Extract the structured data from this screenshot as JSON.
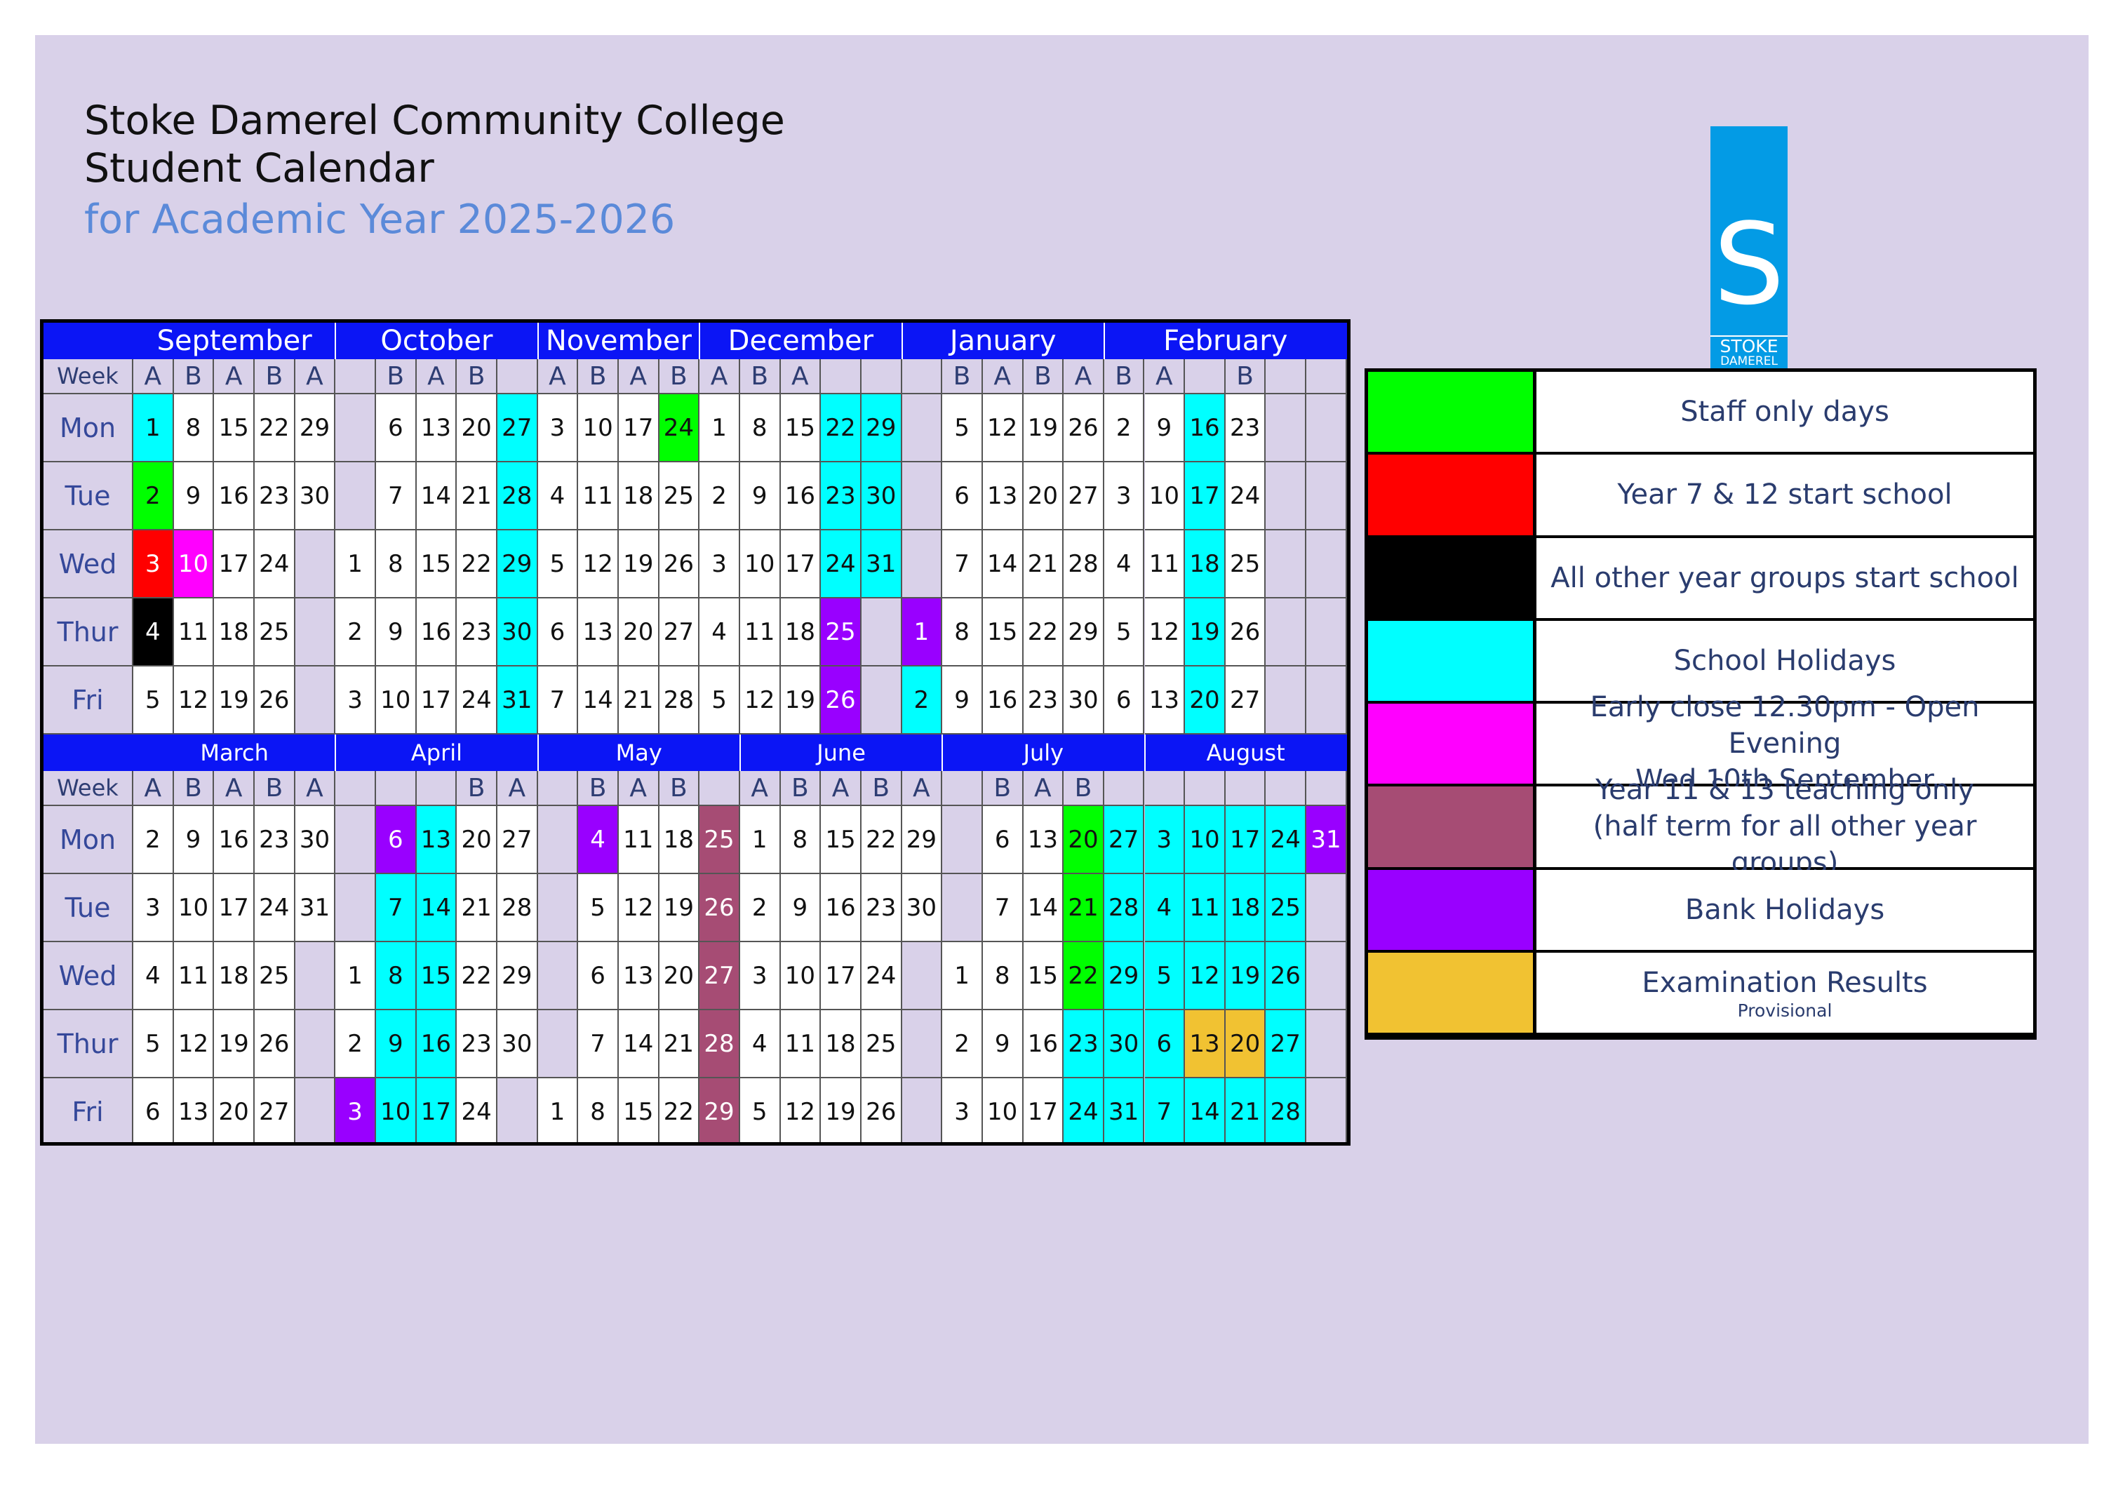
{
  "header": {
    "line1": "Stoke Damerel Community College",
    "line2": "Student Calendar",
    "line3": "for Academic Year 2025-2026"
  },
  "logo": {
    "glyph": "S",
    "line1": "STOKE",
    "line2": "DAMEREL"
  },
  "colors": {
    "staff": "#00ff00",
    "y712": "#ff0000",
    "other": "#000000",
    "hol": "#00ffff",
    "early": "#ff00ff",
    "y1113": "#a64c74",
    "bank": "#9900ff",
    "exam": "#f1c232",
    "header_bar": "#0b15f5",
    "page": "#d9d1e9"
  },
  "calendar": {
    "week_label": "Week",
    "row_labels": [
      "Mon",
      "Tue",
      "Wed",
      "Thur",
      "Fri"
    ],
    "blocks": [
      {
        "months": [
          {
            "name": "September",
            "cols": 5
          },
          {
            "name": "October",
            "cols": 5
          },
          {
            "name": "November",
            "cols": 4
          },
          {
            "name": "December",
            "cols": 5
          },
          {
            "name": "January",
            "cols": 5
          },
          {
            "name": "February",
            "cols": 6
          }
        ],
        "weeks": [
          "A",
          "B",
          "A",
          "B",
          "A",
          "",
          "B",
          "A",
          "B",
          "",
          "A",
          "B",
          "A",
          "B",
          "A",
          "B",
          "A",
          "",
          "",
          "",
          "B",
          "A",
          "B",
          "A",
          "B",
          "A",
          "",
          "B",
          "",
          ""
        ],
        "days": [
          [
            "1",
            "8",
            "15",
            "22",
            "29",
            "",
            "6",
            "13",
            "20",
            "27",
            "3",
            "10",
            "17",
            "24",
            "1",
            "8",
            "15",
            "22",
            "29",
            "",
            "5",
            "12",
            "19",
            "26",
            "2",
            "9",
            "16",
            "23",
            "",
            ""
          ],
          [
            "2",
            "9",
            "16",
            "23",
            "30",
            "",
            "7",
            "14",
            "21",
            "28",
            "4",
            "11",
            "18",
            "25",
            "2",
            "9",
            "16",
            "23",
            "30",
            "",
            "6",
            "13",
            "20",
            "27",
            "3",
            "10",
            "17",
            "24",
            "",
            ""
          ],
          [
            "3",
            "10",
            "17",
            "24",
            "",
            "1",
            "8",
            "15",
            "22",
            "29",
            "5",
            "12",
            "19",
            "26",
            "3",
            "10",
            "17",
            "24",
            "31",
            "",
            "7",
            "14",
            "21",
            "28",
            "4",
            "11",
            "18",
            "25",
            "",
            ""
          ],
          [
            "4",
            "11",
            "18",
            "25",
            "",
            "2",
            "9",
            "16",
            "23",
            "30",
            "6",
            "13",
            "20",
            "27",
            "4",
            "11",
            "18",
            "25",
            "",
            "1",
            "8",
            "15",
            "22",
            "29",
            "5",
            "12",
            "19",
            "26",
            "",
            ""
          ],
          [
            "5",
            "12",
            "19",
            "26",
            "",
            "3",
            "10",
            "17",
            "24",
            "31",
            "7",
            "14",
            "21",
            "28",
            "5",
            "12",
            "19",
            "26",
            "",
            "2",
            "9",
            "16",
            "23",
            "30",
            "6",
            "13",
            "20",
            "27",
            "",
            ""
          ]
        ],
        "colors": [
          [
            "hol",
            "",
            "",
            "",
            "",
            "",
            "",
            "",
            "",
            "hol",
            "",
            "",
            "",
            "staff",
            "",
            "",
            "",
            "hol",
            "hol",
            "",
            "",
            "",
            "",
            "",
            "",
            "",
            "hol",
            "",
            "",
            ""
          ],
          [
            "staff",
            "",
            "",
            "",
            "",
            "",
            "",
            "",
            "",
            "hol",
            "",
            "",
            "",
            "",
            "",
            "",
            "",
            "hol",
            "hol",
            "",
            "",
            "",
            "",
            "",
            "",
            "",
            "hol",
            "",
            "",
            ""
          ],
          [
            "y712",
            "early",
            "",
            "",
            "",
            "",
            "",
            "",
            "",
            "hol",
            "",
            "",
            "",
            "",
            "",
            "",
            "",
            "hol",
            "hol",
            "",
            "",
            "",
            "",
            "",
            "",
            "",
            "hol",
            "",
            "",
            ""
          ],
          [
            "other",
            "",
            "",
            "",
            "",
            "",
            "",
            "",
            "",
            "hol",
            "",
            "",
            "",
            "",
            "",
            "",
            "",
            "bank",
            "",
            "bank",
            "",
            "",
            "",
            "",
            "",
            "",
            "hol",
            "",
            "",
            ""
          ],
          [
            "",
            "",
            "",
            "",
            "",
            "",
            "",
            "",
            "",
            "hol",
            "",
            "",
            "",
            "",
            "",
            "",
            "",
            "bank",
            "",
            "hol",
            "",
            "",
            "",
            "",
            "",
            "",
            "hol",
            "",
            "",
            ""
          ]
        ]
      },
      {
        "months": [
          {
            "name": "March",
            "cols": 5
          },
          {
            "name": "April",
            "cols": 5
          },
          {
            "name": "May",
            "cols": 5
          },
          {
            "name": "June",
            "cols": 5
          },
          {
            "name": "July",
            "cols": 5
          },
          {
            "name": "August",
            "cols": 5
          }
        ],
        "weeks": [
          "A",
          "B",
          "A",
          "B",
          "A",
          "",
          "",
          "",
          "B",
          "A",
          "",
          "B",
          "A",
          "B",
          "",
          "A",
          "B",
          "A",
          "B",
          "A",
          "",
          "B",
          "A",
          "B",
          "",
          "",
          "",
          "",
          "",
          ""
        ],
        "days": [
          [
            "2",
            "9",
            "16",
            "23",
            "30",
            "",
            "6",
            "13",
            "20",
            "27",
            "",
            "4",
            "11",
            "18",
            "25",
            "1",
            "8",
            "15",
            "22",
            "29",
            "",
            "6",
            "13",
            "20",
            "27",
            "3",
            "10",
            "17",
            "24",
            "31"
          ],
          [
            "3",
            "10",
            "17",
            "24",
            "31",
            "",
            "7",
            "14",
            "21",
            "28",
            "",
            "5",
            "12",
            "19",
            "26",
            "2",
            "9",
            "16",
            "23",
            "30",
            "",
            "7",
            "14",
            "21",
            "28",
            "4",
            "11",
            "18",
            "25",
            ""
          ],
          [
            "4",
            "11",
            "18",
            "25",
            "",
            "1",
            "8",
            "15",
            "22",
            "29",
            "",
            "6",
            "13",
            "20",
            "27",
            "3",
            "10",
            "17",
            "24",
            "",
            "1",
            "8",
            "15",
            "22",
            "29",
            "5",
            "12",
            "19",
            "26",
            ""
          ],
          [
            "5",
            "12",
            "19",
            "26",
            "",
            "2",
            "9",
            "16",
            "23",
            "30",
            "",
            "7",
            "14",
            "21",
            "28",
            "4",
            "11",
            "18",
            "25",
            "",
            "2",
            "9",
            "16",
            "23",
            "30",
            "6",
            "13",
            "20",
            "27",
            ""
          ],
          [
            "6",
            "13",
            "20",
            "27",
            "",
            "3",
            "10",
            "17",
            "24",
            "",
            "1",
            "8",
            "15",
            "22",
            "29",
            "5",
            "12",
            "19",
            "26",
            "",
            "3",
            "10",
            "17",
            "24",
            "31",
            "7",
            "14",
            "21",
            "28",
            ""
          ]
        ],
        "colors": [
          [
            "",
            "",
            "",
            "",
            "",
            "",
            "bank",
            "hol",
            "",
            "",
            "",
            "bank",
            "",
            "",
            "y1113",
            "",
            "",
            "",
            "",
            "",
            "",
            "",
            "",
            "staff",
            "hol",
            "hol",
            "hol",
            "hol",
            "hol",
            "bank"
          ],
          [
            "",
            "",
            "",
            "",
            "",
            "",
            "hol",
            "hol",
            "",
            "",
            "",
            "",
            "",
            "",
            "y1113",
            "",
            "",
            "",
            "",
            "",
            "",
            "",
            "",
            "staff",
            "hol",
            "hol",
            "hol",
            "hol",
            "hol",
            ""
          ],
          [
            "",
            "",
            "",
            "",
            "",
            "",
            "hol",
            "hol",
            "",
            "",
            "",
            "",
            "",
            "",
            "y1113",
            "",
            "",
            "",
            "",
            "",
            "",
            "",
            "",
            "staff",
            "hol",
            "hol",
            "hol",
            "hol",
            "hol",
            ""
          ],
          [
            "",
            "",
            "",
            "",
            "",
            "",
            "hol",
            "hol",
            "",
            "",
            "",
            "",
            "",
            "",
            "y1113",
            "",
            "",
            "",
            "",
            "",
            "",
            "",
            "",
            "hol",
            "hol",
            "hol",
            "exam",
            "exam",
            "hol",
            ""
          ],
          [
            "",
            "",
            "",
            "",
            "",
            "bank",
            "hol",
            "hol",
            "",
            "",
            "",
            "",
            "",
            "",
            "y1113",
            "",
            "",
            "",
            "",
            "",
            "",
            "",
            "",
            "hol",
            "hol",
            "hol",
            "hol",
            "hol",
            "hol",
            ""
          ]
        ]
      }
    ]
  },
  "legend": [
    {
      "key": "staff",
      "label": "Staff only days"
    },
    {
      "key": "y712",
      "label": "Year 7 & 12 start school"
    },
    {
      "key": "other",
      "label": "All other year groups start school"
    },
    {
      "key": "hol",
      "label": "School Holidays"
    },
    {
      "key": "early",
      "label": "Early close 12.30pm  - Open Evening",
      "label2": "Wed 10th September"
    },
    {
      "key": "y1113",
      "label": "Year 11 & 13 teaching only",
      "label2": "(half term for all other year groups)"
    },
    {
      "key": "bank",
      "label": "Bank Holidays"
    },
    {
      "key": "exam",
      "label": "Examination Results",
      "sub": "Provisional"
    }
  ]
}
